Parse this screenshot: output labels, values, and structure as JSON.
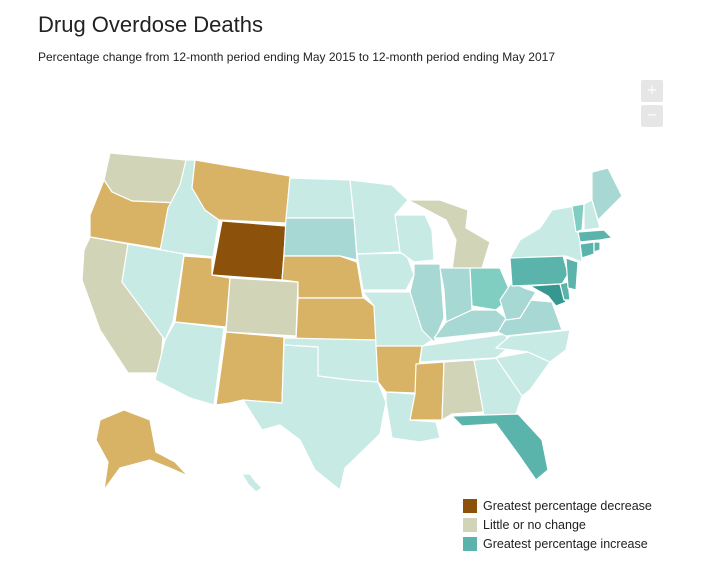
{
  "title": "Drug Overdose Deaths",
  "subtitle": "Percentage change from 12-month period ending May 2015 to 12-month period ending May 2017",
  "zoom": {
    "in_label": "+",
    "out_label": "−"
  },
  "palette": {
    "decrease_strong": "#8c510a",
    "decrease": "#d8b365",
    "decrease_light": "#dfc27d",
    "little": "#d2d4b7",
    "increase_light": "#c7eae5",
    "increase_mid": "#a7d8d3",
    "increase": "#80cdc1",
    "increase_strong": "#5ab4ac",
    "increase_max": "#35978f"
  },
  "legend": [
    {
      "label": "Greatest percentage decrease",
      "color": "#8c510a"
    },
    {
      "label": "Little or no change",
      "color": "#d2d4b7"
    },
    {
      "label": "Greatest percentage increase",
      "color": "#5ab4ac"
    }
  ],
  "states": [
    {
      "name": "Washington",
      "category": "little"
    },
    {
      "name": "Oregon",
      "category": "decrease"
    },
    {
      "name": "California",
      "category": "little"
    },
    {
      "name": "Idaho",
      "category": "increase_light"
    },
    {
      "name": "Nevada",
      "category": "increase_light"
    },
    {
      "name": "Montana",
      "category": "decrease"
    },
    {
      "name": "Wyoming",
      "category": "decrease_strong"
    },
    {
      "name": "Utah",
      "category": "decrease"
    },
    {
      "name": "Arizona",
      "category": "increase_light"
    },
    {
      "name": "Colorado",
      "category": "little"
    },
    {
      "name": "New Mexico",
      "category": "decrease"
    },
    {
      "name": "North Dakota",
      "category": "increase_light"
    },
    {
      "name": "South Dakota",
      "category": "increase_mid"
    },
    {
      "name": "Nebraska",
      "category": "decrease"
    },
    {
      "name": "Kansas",
      "category": "decrease"
    },
    {
      "name": "Oklahoma",
      "category": "increase_light"
    },
    {
      "name": "Texas",
      "category": "increase_light"
    },
    {
      "name": "Minnesota",
      "category": "increase_light"
    },
    {
      "name": "Iowa",
      "category": "increase_light"
    },
    {
      "name": "Missouri",
      "category": "increase_light"
    },
    {
      "name": "Arkansas",
      "category": "decrease"
    },
    {
      "name": "Louisiana",
      "category": "increase_light"
    },
    {
      "name": "Wisconsin",
      "category": "increase_light"
    },
    {
      "name": "Illinois",
      "category": "increase_mid"
    },
    {
      "name": "Michigan",
      "category": "little"
    },
    {
      "name": "Indiana",
      "category": "increase_mid"
    },
    {
      "name": "Ohio",
      "category": "increase"
    },
    {
      "name": "Kentucky",
      "category": "increase_mid"
    },
    {
      "name": "Tennessee",
      "category": "increase_light"
    },
    {
      "name": "Mississippi",
      "category": "decrease"
    },
    {
      "name": "Alabama",
      "category": "little"
    },
    {
      "name": "Georgia",
      "category": "increase_light"
    },
    {
      "name": "Florida",
      "category": "increase_strong"
    },
    {
      "name": "South Carolina",
      "category": "increase_light"
    },
    {
      "name": "North Carolina",
      "category": "increase_light"
    },
    {
      "name": "Virginia",
      "category": "increase_mid"
    },
    {
      "name": "West Virginia",
      "category": "increase_mid"
    },
    {
      "name": "Pennsylvania",
      "category": "increase_strong"
    },
    {
      "name": "New York",
      "category": "increase_light"
    },
    {
      "name": "Maryland",
      "category": "increase_max"
    },
    {
      "name": "Delaware",
      "category": "increase_strong"
    },
    {
      "name": "New Jersey",
      "category": "increase_strong"
    },
    {
      "name": "Connecticut",
      "category": "increase_strong"
    },
    {
      "name": "Rhode Island",
      "category": "increase_strong"
    },
    {
      "name": "Massachusetts",
      "category": "increase_strong"
    },
    {
      "name": "Vermont",
      "category": "increase"
    },
    {
      "name": "New Hampshire",
      "category": "increase_light"
    },
    {
      "name": "Maine",
      "category": "increase_mid"
    },
    {
      "name": "Alaska",
      "category": "decrease"
    },
    {
      "name": "Hawaii",
      "category": "increase_light"
    }
  ]
}
